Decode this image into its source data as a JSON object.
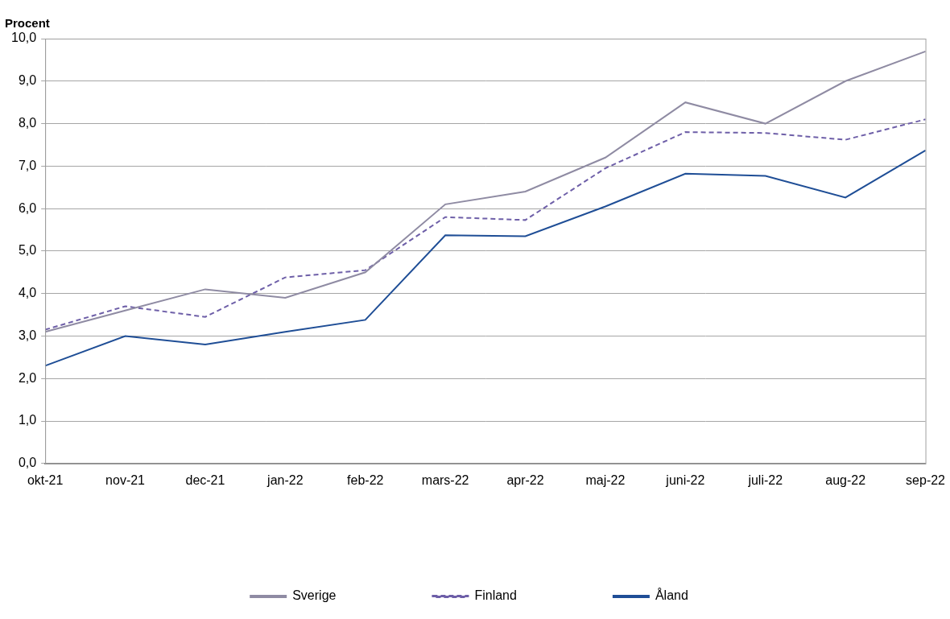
{
  "chart_data": {
    "type": "line",
    "ylabel": "Procent",
    "categories": [
      "okt-21",
      "nov-21",
      "dec-21",
      "jan-22",
      "feb-22",
      "mars-22",
      "apr-22",
      "maj-22",
      "juni-22",
      "juli-22",
      "aug-22",
      "sep-22"
    ],
    "series": [
      {
        "name": "Sverige",
        "color": "#8f8ba3",
        "line_style": "solid",
        "values": [
          3.1,
          3.6,
          4.1,
          3.9,
          4.5,
          6.1,
          6.4,
          7.2,
          8.5,
          8.0,
          9.0,
          9.7
        ]
      },
      {
        "name": "Finland",
        "color": "#6e5fa8",
        "line_style": "dashed",
        "values": [
          3.15,
          3.7,
          3.45,
          4.38,
          4.55,
          5.8,
          5.73,
          6.95,
          7.8,
          7.78,
          7.62,
          8.1
        ]
      },
      {
        "name": "Åland",
        "color": "#1f4e96",
        "line_style": "solid",
        "values": [
          2.3,
          3.0,
          2.8,
          3.1,
          3.38,
          5.37,
          5.35,
          6.05,
          6.82,
          6.77,
          6.26,
          7.37
        ]
      }
    ],
    "ylim": [
      0,
      10
    ],
    "yticks": [
      {
        "value": 0,
        "label": "0,0"
      },
      {
        "value": 1,
        "label": "1,0"
      },
      {
        "value": 2,
        "label": "2,0"
      },
      {
        "value": 3,
        "label": "3,0"
      },
      {
        "value": 4,
        "label": "4,0"
      },
      {
        "value": 5,
        "label": "5,0"
      },
      {
        "value": 6,
        "label": "6,0"
      },
      {
        "value": 7,
        "label": "7,0"
      },
      {
        "value": 8,
        "label": "8,0"
      },
      {
        "value": 9,
        "label": "9,0"
      },
      {
        "value": 10,
        "label": "10,0"
      }
    ],
    "grid": true,
    "legend": "bottom"
  }
}
